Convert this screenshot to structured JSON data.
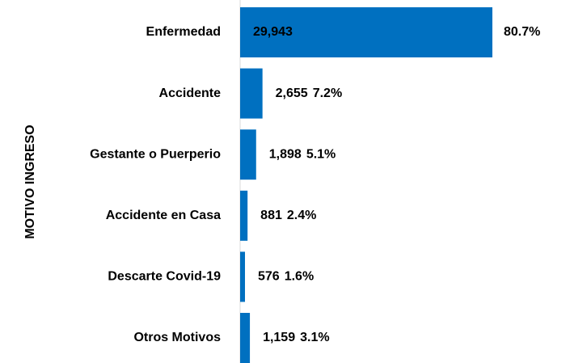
{
  "chart_data": {
    "type": "bar",
    "orientation": "horizontal",
    "y_axis_label": "MOTIVO INGRESO",
    "categories": [
      "Enfermedad",
      "Accidente",
      "Gestante o Puerperio",
      "Accidente en Casa",
      "Descarte Covid-19",
      "Otros Motivos"
    ],
    "values": [
      29943,
      2655,
      1898,
      881,
      576,
      1159
    ],
    "value_labels": [
      "29,943",
      "2,655",
      "1,898",
      "881",
      "576",
      "1,159"
    ],
    "percentages": [
      80.7,
      7.2,
      5.1,
      2.4,
      1.6,
      3.1
    ],
    "percentage_labels": [
      "80.7%",
      "7.2%",
      "5.1%",
      "2.4%",
      "1.6%",
      "3.1%"
    ],
    "color": "#0070c0",
    "percentage_color": "#1f78c1"
  }
}
